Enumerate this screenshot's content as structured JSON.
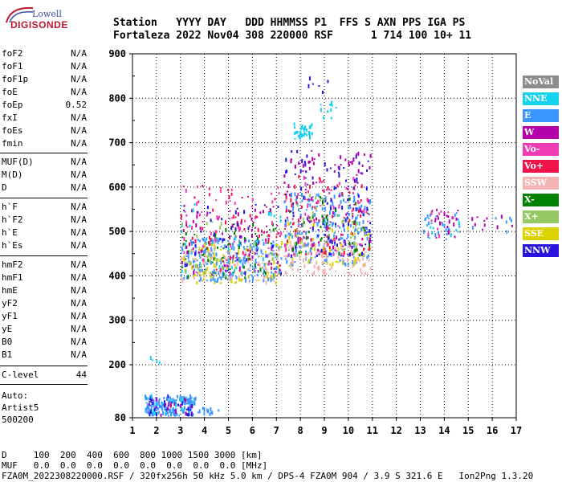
{
  "logo": {
    "line1": "Lowell",
    "line2": "DIGISONDE"
  },
  "header": {
    "line1": "Station   YYYY DAY   DDD HHMMSS P1  FFS S AXN PPS IGA PS",
    "line2": "Fortaleza 2022 Nov04 308 220000 RSF      1 714 100 10+ 11"
  },
  "params": {
    "group1": [
      {
        "name": "foF2",
        "value": "N/A"
      },
      {
        "name": "foF1",
        "value": "N/A"
      },
      {
        "name": "foF1p",
        "value": "N/A"
      },
      {
        "name": "foE",
        "value": "N/A"
      },
      {
        "name": "foEp",
        "value": "0.52"
      },
      {
        "name": "fxI",
        "value": "N/A"
      },
      {
        "name": "foEs",
        "value": "N/A"
      },
      {
        "name": "fmin",
        "value": "N/A"
      }
    ],
    "group2": [
      {
        "name": "MUF(D)",
        "value": "N/A"
      },
      {
        "name": "M(D)",
        "value": "N/A"
      },
      {
        "name": "D",
        "value": "N/A"
      }
    ],
    "group3": [
      {
        "name": "h`F",
        "value": "N/A"
      },
      {
        "name": "h`F2",
        "value": "N/A"
      },
      {
        "name": "h`E",
        "value": "N/A"
      },
      {
        "name": "h`Es",
        "value": "N/A"
      }
    ],
    "group4": [
      {
        "name": "hmF2",
        "value": "N/A"
      },
      {
        "name": "hmF1",
        "value": "N/A"
      },
      {
        "name": "hmE",
        "value": "N/A"
      },
      {
        "name": "yF2",
        "value": "N/A"
      },
      {
        "name": "yF1",
        "value": "N/A"
      },
      {
        "name": "yE",
        "value": "N/A"
      },
      {
        "name": "B0",
        "value": "N/A"
      },
      {
        "name": "B1",
        "value": "N/A"
      }
    ],
    "clevel": {
      "name": "C-level",
      "value": "44"
    }
  },
  "auto": {
    "line1": "Auto:",
    "line2": "Artist5",
    "line3": "500200"
  },
  "footer": {
    "d_row": "D     100  200  400  600  800 1000 1500 3000 [km]",
    "muf_row": "MUF   0.0  0.0  0.0  0.0  0.0  0.0  0.0  0.0 [MHz]",
    "file_row": "FZA0M_2022308220000.RSF / 320fx256h 50 kHz 5.0 km / DPS-4 FZA0M 904 / 3.9 S 321.6 E   Ion2Png 1.3.20"
  },
  "legend": [
    {
      "label": "NoVal",
      "color": "#8c8c8c"
    },
    {
      "label": "NNE",
      "color": "#14d2f0"
    },
    {
      "label": "E",
      "color": "#3c96ff"
    },
    {
      "label": "W",
      "color": "#b400aa"
    },
    {
      "label": "Vo-",
      "color": "#f03cb4"
    },
    {
      "label": "Vo+",
      "color": "#f0144b"
    },
    {
      "label": "SSW",
      "color": "#f5b4b4"
    },
    {
      "label": "X-",
      "color": "#008200"
    },
    {
      "label": "X+",
      "color": "#96c864"
    },
    {
      "label": "SSE",
      "color": "#dcd200"
    },
    {
      "label": "NNW",
      "color": "#2814dc"
    }
  ],
  "chart_data": {
    "type": "scatter",
    "title": "",
    "xlabel": "",
    "ylabel": "",
    "xlim": [
      1,
      17
    ],
    "ylim": [
      80,
      900
    ],
    "x_ticks": [
      "1",
      "2",
      "3",
      "4",
      "5",
      "6",
      "7",
      "8",
      "9",
      "10",
      "11",
      "12",
      "13",
      "14",
      "15",
      "16",
      "17"
    ],
    "y_ticks": [
      "900",
      "800",
      "700",
      "600",
      "500",
      "400",
      "300",
      "200",
      "80"
    ],
    "grid": true,
    "legend_placement": "right",
    "clusters": [
      {
        "x_range": [
          1.5,
          3.6
        ],
        "y_range": [
          82,
          125
        ],
        "color": "#3c96ff",
        "count": 160
      },
      {
        "x_range": [
          1.5,
          3.6
        ],
        "y_range": [
          82,
          125
        ],
        "color": "#2814dc",
        "count": 35
      },
      {
        "x_range": [
          1.5,
          3.6
        ],
        "y_range": [
          82,
          125
        ],
        "color": "#b400aa",
        "count": 20
      },
      {
        "x_range": [
          1.5,
          3.6
        ],
        "y_range": [
          82,
          125
        ],
        "color": "#14d2f0",
        "count": 20
      },
      {
        "x_range": [
          3.7,
          4.6
        ],
        "y_range": [
          83,
          98
        ],
        "color": "#3c96ff",
        "count": 15
      },
      {
        "x_range": [
          1.6,
          2.1
        ],
        "y_range": [
          195,
          212
        ],
        "color": "#14d2f0",
        "count": 4
      },
      {
        "x_range": [
          3.0,
          7.2
        ],
        "y_range": [
          385,
          480
        ],
        "color": "#3c96ff",
        "count": 260
      },
      {
        "x_range": [
          3.0,
          7.2
        ],
        "y_range": [
          380,
          470
        ],
        "color": "#dcd200",
        "count": 90
      },
      {
        "x_range": [
          3.0,
          7.2
        ],
        "y_range": [
          380,
          460
        ],
        "color": "#f5b4b4",
        "count": 80
      },
      {
        "x_range": [
          3.0,
          7.2
        ],
        "y_range": [
          390,
          520
        ],
        "color": "#008200",
        "count": 60
      },
      {
        "x_range": [
          3.0,
          7.2
        ],
        "y_range": [
          390,
          520
        ],
        "color": "#96c864",
        "count": 40
      },
      {
        "x_range": [
          3.0,
          7.2
        ],
        "y_range": [
          400,
          560
        ],
        "color": "#b400aa",
        "count": 70
      },
      {
        "x_range": [
          3.0,
          7.2
        ],
        "y_range": [
          400,
          600
        ],
        "color": "#f03cb4",
        "count": 60
      },
      {
        "x_range": [
          3.0,
          7.2
        ],
        "y_range": [
          400,
          600
        ],
        "color": "#f0144b",
        "count": 60
      },
      {
        "x_range": [
          3.0,
          7.2
        ],
        "y_range": [
          400,
          560
        ],
        "color": "#2814dc",
        "count": 40
      },
      {
        "x_range": [
          3.0,
          7.2
        ],
        "y_range": [
          400,
          560
        ],
        "color": "#14d2f0",
        "count": 30
      },
      {
        "x_range": [
          7.3,
          10.9
        ],
        "y_range": [
          420,
          580
        ],
        "color": "#3c96ff",
        "count": 230
      },
      {
        "x_range": [
          7.3,
          10.9
        ],
        "y_range": [
          400,
          470
        ],
        "color": "#f5b4b4",
        "count": 110
      },
      {
        "x_range": [
          7.3,
          10.9
        ],
        "y_range": [
          420,
          520
        ],
        "color": "#dcd200",
        "count": 60
      },
      {
        "x_range": [
          7.3,
          10.9
        ],
        "y_range": [
          440,
          680
        ],
        "color": "#2814dc",
        "count": 110
      },
      {
        "x_range": [
          7.3,
          10.9
        ],
        "y_range": [
          450,
          680
        ],
        "color": "#b400aa",
        "count": 90
      },
      {
        "x_range": [
          7.3,
          10.9
        ],
        "y_range": [
          440,
          620
        ],
        "color": "#f0144b",
        "count": 70
      },
      {
        "x_range": [
          7.3,
          10.9
        ],
        "y_range": [
          440,
          620
        ],
        "color": "#f03cb4",
        "count": 60
      },
      {
        "x_range": [
          7.3,
          10.9
        ],
        "y_range": [
          440,
          580
        ],
        "color": "#008200",
        "count": 40
      },
      {
        "x_range": [
          7.3,
          10.9
        ],
        "y_range": [
          440,
          580
        ],
        "color": "#96c864",
        "count": 40
      },
      {
        "x_range": [
          7.7,
          8.5
        ],
        "y_range": [
          705,
          740
        ],
        "color": "#14d2f0",
        "count": 40
      },
      {
        "x_range": [
          8.8,
          9.5
        ],
        "y_range": [
          740,
          790
        ],
        "color": "#14d2f0",
        "count": 10
      },
      {
        "x_range": [
          8.0,
          9.2
        ],
        "y_range": [
          790,
          845
        ],
        "color": "#2814dc",
        "count": 6
      },
      {
        "x_range": [
          13.1,
          14.6
        ],
        "y_range": [
          480,
          540
        ],
        "color": "#3c96ff",
        "count": 30
      },
      {
        "x_range": [
          13.1,
          14.6
        ],
        "y_range": [
          480,
          550
        ],
        "color": "#b400aa",
        "count": 20
      },
      {
        "x_range": [
          13.1,
          14.6
        ],
        "y_range": [
          480,
          550
        ],
        "color": "#f03cb4",
        "count": 10
      },
      {
        "x_range": [
          13.1,
          14.6
        ],
        "y_range": [
          480,
          540
        ],
        "color": "#14d2f0",
        "count": 10
      },
      {
        "x_range": [
          15.0,
          16.9
        ],
        "y_range": [
          495,
          535
        ],
        "color": "#b400aa",
        "count": 10
      },
      {
        "x_range": [
          15.0,
          16.9
        ],
        "y_range": [
          495,
          535
        ],
        "color": "#3c96ff",
        "count": 6
      }
    ]
  }
}
